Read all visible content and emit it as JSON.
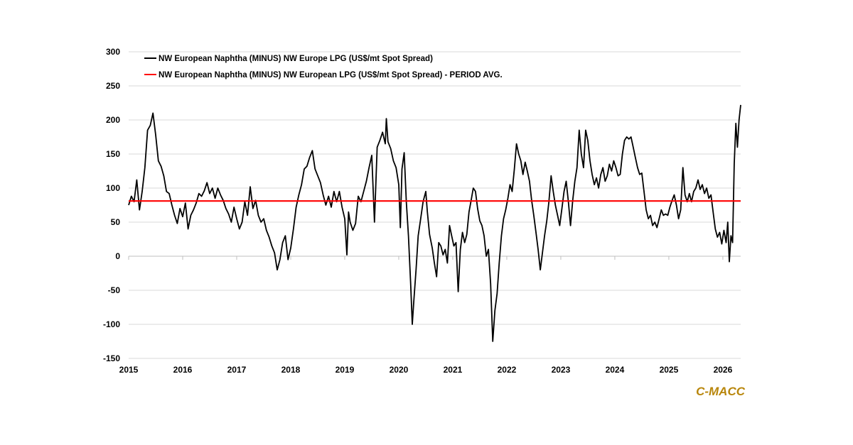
{
  "chart_data": {
    "type": "line",
    "title": "",
    "xlabel": "",
    "ylabel": "",
    "ylim": [
      -150,
      300
    ],
    "yticks": [
      300,
      250,
      200,
      150,
      100,
      50,
      0,
      -50,
      -100,
      -150
    ],
    "xlim": [
      2015,
      2026.33
    ],
    "xticks": [
      "2015",
      "2016",
      "2017",
      "2018",
      "2019",
      "2020",
      "2021",
      "2022",
      "2023",
      "2024",
      "2025",
      "2026"
    ],
    "legend_position": "top-left",
    "series": [
      {
        "name": "NW European Naphtha (MINUS) NW Europe LPG (US$/mt Spot Spread)",
        "color": "#000000",
        "points": [
          [
            2015.0,
            75
          ],
          [
            2015.05,
            88
          ],
          [
            2015.1,
            80
          ],
          [
            2015.15,
            112
          ],
          [
            2015.2,
            68
          ],
          [
            2015.25,
            95
          ],
          [
            2015.3,
            130
          ],
          [
            2015.35,
            185
          ],
          [
            2015.4,
            192
          ],
          [
            2015.45,
            210
          ],
          [
            2015.5,
            178
          ],
          [
            2015.55,
            140
          ],
          [
            2015.6,
            132
          ],
          [
            2015.65,
            118
          ],
          [
            2015.7,
            95
          ],
          [
            2015.75,
            92
          ],
          [
            2015.8,
            75
          ],
          [
            2015.85,
            60
          ],
          [
            2015.9,
            48
          ],
          [
            2015.95,
            70
          ],
          [
            2016.0,
            58
          ],
          [
            2016.05,
            78
          ],
          [
            2016.1,
            40
          ],
          [
            2016.15,
            60
          ],
          [
            2016.2,
            68
          ],
          [
            2016.25,
            78
          ],
          [
            2016.3,
            92
          ],
          [
            2016.35,
            88
          ],
          [
            2016.4,
            96
          ],
          [
            2016.45,
            108
          ],
          [
            2016.5,
            92
          ],
          [
            2016.55,
            100
          ],
          [
            2016.6,
            85
          ],
          [
            2016.65,
            100
          ],
          [
            2016.7,
            90
          ],
          [
            2016.75,
            82
          ],
          [
            2016.8,
            70
          ],
          [
            2016.85,
            62
          ],
          [
            2016.9,
            50
          ],
          [
            2016.95,
            72
          ],
          [
            2017.0,
            55
          ],
          [
            2017.05,
            40
          ],
          [
            2017.1,
            50
          ],
          [
            2017.15,
            80
          ],
          [
            2017.2,
            60
          ],
          [
            2017.25,
            102
          ],
          [
            2017.3,
            70
          ],
          [
            2017.35,
            82
          ],
          [
            2017.4,
            60
          ],
          [
            2017.45,
            50
          ],
          [
            2017.5,
            55
          ],
          [
            2017.55,
            38
          ],
          [
            2017.6,
            28
          ],
          [
            2017.65,
            15
          ],
          [
            2017.7,
            5
          ],
          [
            2017.75,
            -20
          ],
          [
            2017.8,
            -5
          ],
          [
            2017.85,
            20
          ],
          [
            2017.9,
            30
          ],
          [
            2017.95,
            -5
          ],
          [
            2018.0,
            12
          ],
          [
            2018.05,
            40
          ],
          [
            2018.1,
            72
          ],
          [
            2018.15,
            90
          ],
          [
            2018.2,
            105
          ],
          [
            2018.25,
            128
          ],
          [
            2018.3,
            132
          ],
          [
            2018.35,
            145
          ],
          [
            2018.4,
            155
          ],
          [
            2018.45,
            128
          ],
          [
            2018.5,
            118
          ],
          [
            2018.55,
            108
          ],
          [
            2018.6,
            90
          ],
          [
            2018.65,
            75
          ],
          [
            2018.7,
            88
          ],
          [
            2018.75,
            72
          ],
          [
            2018.8,
            95
          ],
          [
            2018.85,
            80
          ],
          [
            2018.9,
            95
          ],
          [
            2018.95,
            72
          ],
          [
            2019.0,
            55
          ],
          [
            2019.04,
            2
          ],
          [
            2019.07,
            65
          ],
          [
            2019.1,
            50
          ],
          [
            2019.15,
            38
          ],
          [
            2019.2,
            48
          ],
          [
            2019.25,
            88
          ],
          [
            2019.3,
            80
          ],
          [
            2019.35,
            95
          ],
          [
            2019.4,
            110
          ],
          [
            2019.45,
            130
          ],
          [
            2019.5,
            148
          ],
          [
            2019.55,
            50
          ],
          [
            2019.6,
            160
          ],
          [
            2019.65,
            170
          ],
          [
            2019.7,
            182
          ],
          [
            2019.75,
            165
          ],
          [
            2019.77,
            202
          ],
          [
            2019.8,
            168
          ],
          [
            2019.85,
            158
          ],
          [
            2019.9,
            140
          ],
          [
            2019.95,
            130
          ],
          [
            2020.0,
            105
          ],
          [
            2020.03,
            42
          ],
          [
            2020.06,
            128
          ],
          [
            2020.1,
            152
          ],
          [
            2020.14,
            80
          ],
          [
            2020.18,
            30
          ],
          [
            2020.22,
            -40
          ],
          [
            2020.25,
            -100
          ],
          [
            2020.28,
            -65
          ],
          [
            2020.32,
            -20
          ],
          [
            2020.36,
            30
          ],
          [
            2020.4,
            52
          ],
          [
            2020.45,
            80
          ],
          [
            2020.5,
            95
          ],
          [
            2020.53,
            65
          ],
          [
            2020.57,
            32
          ],
          [
            2020.62,
            12
          ],
          [
            2020.66,
            -10
          ],
          [
            2020.7,
            -30
          ],
          [
            2020.74,
            20
          ],
          [
            2020.78,
            15
          ],
          [
            2020.82,
            2
          ],
          [
            2020.86,
            10
          ],
          [
            2020.9,
            -10
          ],
          [
            2020.94,
            45
          ],
          [
            2020.98,
            30
          ],
          [
            2021.02,
            15
          ],
          [
            2021.06,
            20
          ],
          [
            2021.1,
            -52
          ],
          [
            2021.14,
            10
          ],
          [
            2021.18,
            35
          ],
          [
            2021.22,
            20
          ],
          [
            2021.26,
            32
          ],
          [
            2021.3,
            65
          ],
          [
            2021.34,
            82
          ],
          [
            2021.38,
            100
          ],
          [
            2021.42,
            95
          ],
          [
            2021.46,
            70
          ],
          [
            2021.5,
            52
          ],
          [
            2021.54,
            45
          ],
          [
            2021.58,
            30
          ],
          [
            2021.62,
            0
          ],
          [
            2021.66,
            10
          ],
          [
            2021.7,
            -40
          ],
          [
            2021.74,
            -125
          ],
          [
            2021.78,
            -80
          ],
          [
            2021.82,
            -55
          ],
          [
            2021.86,
            -10
          ],
          [
            2021.9,
            30
          ],
          [
            2021.94,
            55
          ],
          [
            2021.98,
            68
          ],
          [
            2022.02,
            85
          ],
          [
            2022.06,
            105
          ],
          [
            2022.1,
            95
          ],
          [
            2022.14,
            128
          ],
          [
            2022.18,
            165
          ],
          [
            2022.22,
            150
          ],
          [
            2022.26,
            140
          ],
          [
            2022.3,
            120
          ],
          [
            2022.34,
            138
          ],
          [
            2022.38,
            125
          ],
          [
            2022.42,
            110
          ],
          [
            2022.46,
            82
          ],
          [
            2022.5,
            60
          ],
          [
            2022.54,
            35
          ],
          [
            2022.58,
            10
          ],
          [
            2022.62,
            -20
          ],
          [
            2022.66,
            5
          ],
          [
            2022.7,
            30
          ],
          [
            2022.74,
            52
          ],
          [
            2022.78,
            80
          ],
          [
            2022.82,
            118
          ],
          [
            2022.86,
            95
          ],
          [
            2022.9,
            75
          ],
          [
            2022.94,
            60
          ],
          [
            2022.98,
            45
          ],
          [
            2023.02,
            70
          ],
          [
            2023.06,
            95
          ],
          [
            2023.1,
            110
          ],
          [
            2023.14,
            80
          ],
          [
            2023.18,
            45
          ],
          [
            2023.22,
            82
          ],
          [
            2023.26,
            110
          ],
          [
            2023.3,
            130
          ],
          [
            2023.34,
            185
          ],
          [
            2023.38,
            150
          ],
          [
            2023.42,
            130
          ],
          [
            2023.46,
            185
          ],
          [
            2023.5,
            170
          ],
          [
            2023.54,
            140
          ],
          [
            2023.58,
            120
          ],
          [
            2023.62,
            105
          ],
          [
            2023.66,
            115
          ],
          [
            2023.7,
            100
          ],
          [
            2023.74,
            120
          ],
          [
            2023.78,
            130
          ],
          [
            2023.82,
            110
          ],
          [
            2023.86,
            118
          ],
          [
            2023.9,
            135
          ],
          [
            2023.94,
            125
          ],
          [
            2023.98,
            140
          ],
          [
            2024.02,
            130
          ],
          [
            2024.06,
            118
          ],
          [
            2024.1,
            120
          ],
          [
            2024.14,
            150
          ],
          [
            2024.18,
            170
          ],
          [
            2024.22,
            175
          ],
          [
            2024.26,
            172
          ],
          [
            2024.3,
            175
          ],
          [
            2024.34,
            160
          ],
          [
            2024.38,
            145
          ],
          [
            2024.42,
            130
          ],
          [
            2024.46,
            120
          ],
          [
            2024.5,
            122
          ],
          [
            2024.54,
            95
          ],
          [
            2024.58,
            68
          ],
          [
            2024.62,
            55
          ],
          [
            2024.66,
            60
          ],
          [
            2024.7,
            45
          ],
          [
            2024.74,
            50
          ],
          [
            2024.78,
            42
          ],
          [
            2024.82,
            55
          ],
          [
            2024.86,
            68
          ],
          [
            2024.9,
            60
          ],
          [
            2024.94,
            62
          ],
          [
            2024.98,
            60
          ],
          [
            2025.02,
            72
          ],
          [
            2025.06,
            82
          ],
          [
            2025.1,
            90
          ],
          [
            2025.14,
            75
          ],
          [
            2025.18,
            55
          ],
          [
            2025.22,
            68
          ],
          [
            2025.26,
            130
          ],
          [
            2025.3,
            90
          ],
          [
            2025.34,
            80
          ],
          [
            2025.38,
            92
          ],
          [
            2025.42,
            80
          ],
          [
            2025.46,
            95
          ],
          [
            2025.5,
            100
          ],
          [
            2025.54,
            112
          ],
          [
            2025.58,
            98
          ],
          [
            2025.62,
            105
          ],
          [
            2025.66,
            92
          ],
          [
            2025.7,
            100
          ],
          [
            2025.74,
            85
          ],
          [
            2025.78,
            90
          ],
          [
            2025.82,
            65
          ],
          [
            2025.86,
            40
          ],
          [
            2025.9,
            28
          ],
          [
            2025.94,
            35
          ],
          [
            2025.98,
            18
          ],
          [
            2026.02,
            38
          ],
          [
            2026.06,
            20
          ],
          [
            2026.09,
            50
          ],
          [
            2026.12,
            -8
          ],
          [
            2026.15,
            30
          ],
          [
            2026.18,
            20
          ],
          [
            2026.21,
            135
          ],
          [
            2026.24,
            195
          ],
          [
            2026.27,
            160
          ],
          [
            2026.3,
            200
          ],
          [
            2026.33,
            222
          ]
        ]
      },
      {
        "name": "NW European Naphtha (MINUS) NW European LPG (US$/mt Spot Spread) - PERIOD AVG.",
        "color": "#ff0000",
        "points": [
          [
            2015.0,
            81
          ],
          [
            2026.33,
            81
          ]
        ]
      }
    ]
  },
  "brand": {
    "text": "C-MACC",
    "color": "#b8860b"
  }
}
